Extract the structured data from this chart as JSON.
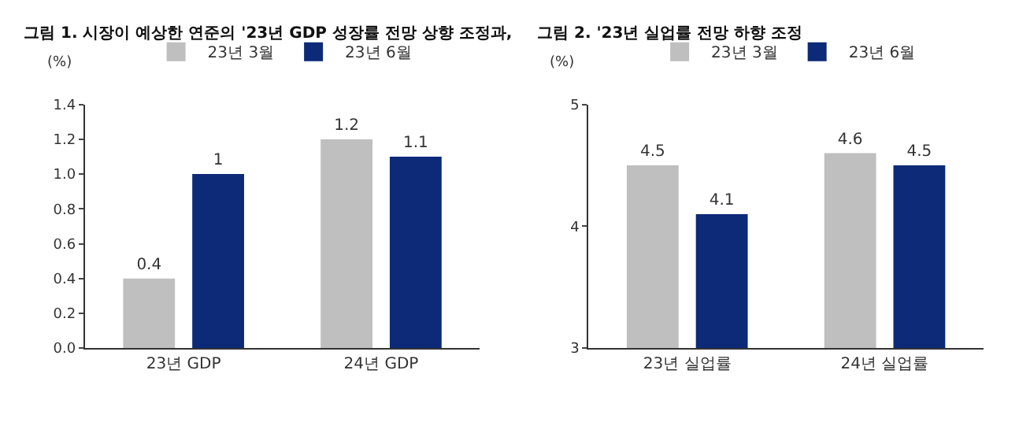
{
  "chart_data": [
    {
      "type": "bar",
      "title": "그림 1. 시장이 예상한 연준의 '23년 GDP 성장률 전망 상향 조정과,",
      "ylabel": "(%)",
      "categories": [
        "23년 GDP",
        "24년 GDP"
      ],
      "series": [
        {
          "name": "23년 3월",
          "color": "#bfbfbf",
          "values": [
            0.4,
            1.2
          ]
        },
        {
          "name": "23년 6월",
          "color": "#0d2a78",
          "values": [
            1,
            1.1
          ]
        }
      ],
      "ylim": [
        0,
        1.4
      ],
      "yticks": [
        {
          "value": 0,
          "label": "0.0"
        },
        {
          "value": 0.2,
          "label": "0.2"
        },
        {
          "value": 0.4,
          "label": "0.4"
        },
        {
          "value": 0.6,
          "label": "0.6"
        },
        {
          "value": 0.8,
          "label": "0.8"
        },
        {
          "value": 1,
          "label": "1.0"
        },
        {
          "value": 1.2,
          "label": "1.2"
        },
        {
          "value": 1.4,
          "label": "1.4"
        }
      ],
      "data_labels": true,
      "legend": "top"
    },
    {
      "type": "bar",
      "title": "그림 2. '23년 실업률 전망 하향 조정",
      "ylabel": "(%)",
      "categories": [
        "23년 실업률",
        "24년 실업률"
      ],
      "series": [
        {
          "name": "23년 3월",
          "color": "#bfbfbf",
          "values": [
            4.5,
            4.6
          ]
        },
        {
          "name": "23년 6월",
          "color": "#0d2a78",
          "values": [
            4.1,
            4.5
          ]
        }
      ],
      "ylim": [
        3,
        5
      ],
      "yticks": [
        3,
        4,
        5
      ],
      "data_labels": true,
      "legend": "top"
    }
  ]
}
